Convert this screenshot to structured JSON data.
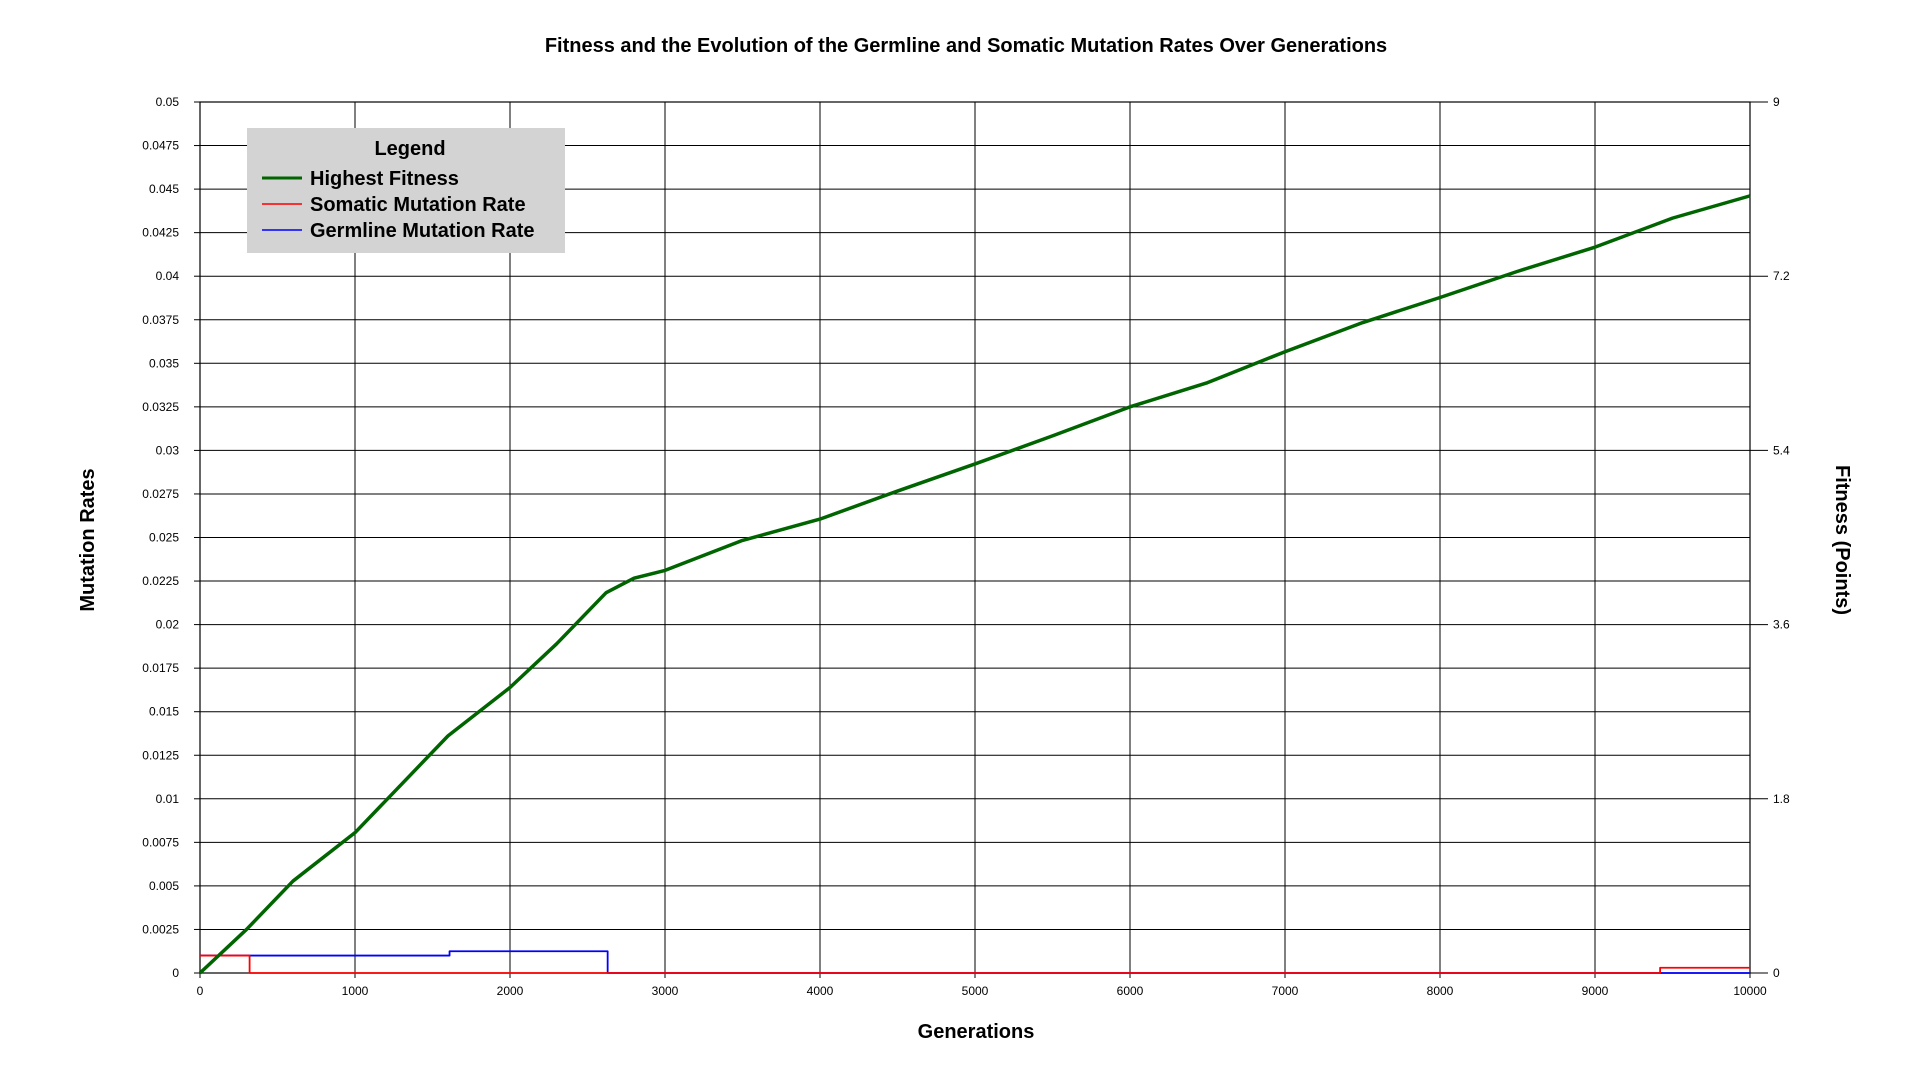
{
  "chart_data": {
    "type": "line",
    "title": "Fitness and the Evolution of the Germline and Somatic Mutation Rates Over Generations",
    "xlabel": "Generations",
    "ylabel_left": "Mutation Rates",
    "ylabel_right": "Fitness (Points)",
    "xlim": [
      0,
      10000
    ],
    "ylim_left": [
      0,
      0.05
    ],
    "ylim_right": [
      0,
      9
    ],
    "x_ticks": [
      0,
      1000,
      2000,
      3000,
      4000,
      5000,
      6000,
      7000,
      8000,
      9000,
      10000
    ],
    "x_tick_labels": [
      "0",
      "1000",
      "2000",
      "3000",
      "4000",
      "5000",
      "6000",
      "7000",
      "8000",
      "9000",
      "10000"
    ],
    "y_left_ticks": [
      0,
      0.0025,
      0.005,
      0.0075,
      0.01,
      0.0125,
      0.015,
      0.0175,
      0.02,
      0.0225,
      0.025,
      0.0275,
      0.03,
      0.0325,
      0.035,
      0.0375,
      0.04,
      0.0425,
      0.045,
      0.0475,
      0.05
    ],
    "y_left_tick_labels": [
      "0",
      "0.0025",
      "0.005",
      "0.0075",
      "0.01",
      "0.0125",
      "0.015",
      "0.0175",
      "0.02",
      "0.0225",
      "0.025",
      "0.0275",
      "0.03",
      "0.0325",
      "0.035",
      "0.0375",
      "0.04",
      "0.0425",
      "0.045",
      "0.0475",
      "0.05"
    ],
    "y_right_ticks": [
      0,
      1.8,
      3.6,
      5.4,
      7.2,
      9
    ],
    "y_right_tick_labels": [
      "0",
      "1.8",
      "3.6",
      "5.4",
      "7.2",
      "9"
    ],
    "grid": true,
    "legend": {
      "title": "Legend",
      "position": "top-left",
      "entries": [
        "Highest Fitness",
        "Somatic Mutation Rate",
        "Germline Mutation Rate"
      ]
    },
    "series": [
      {
        "name": "Highest Fitness",
        "axis": "right",
        "color": "#006400",
        "x": [
          0,
          300,
          600,
          1000,
          1300,
          1600,
          2000,
          2300,
          2620,
          2800,
          3000,
          3500,
          4000,
          4500,
          5000,
          5500,
          6000,
          6500,
          7000,
          7500,
          8000,
          8500,
          9000,
          9500,
          10000
        ],
        "y": [
          0,
          0.45,
          0.95,
          1.45,
          1.95,
          2.45,
          2.95,
          3.4,
          3.93,
          4.08,
          4.16,
          4.47,
          4.69,
          4.98,
          5.26,
          5.55,
          5.85,
          6.1,
          6.42,
          6.72,
          6.98,
          7.25,
          7.5,
          7.8,
          8.03
        ]
      },
      {
        "name": "Somatic Mutation Rate",
        "axis": "left",
        "color": "#ff0000",
        "x": [
          0,
          320,
          320,
          9420,
          9420,
          10000
        ],
        "y": [
          0.001,
          0.001,
          0,
          0,
          0.0003,
          0.0003
        ]
      },
      {
        "name": "Germline Mutation Rate",
        "axis": "left",
        "color": "#0000ff",
        "x": [
          0,
          1610,
          1610,
          2630,
          2630,
          10000
        ],
        "y": [
          0.001,
          0.001,
          0.00125,
          0.00125,
          0,
          0
        ]
      }
    ]
  }
}
